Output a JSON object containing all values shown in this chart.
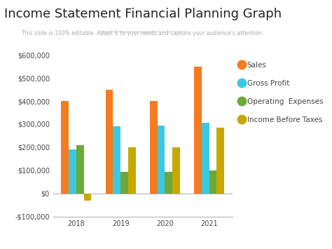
{
  "title": "Income Statement Financial Planning Graph",
  "subtitle": "This slide is 100% editable. Adapt it to your needs and capture your audience’s attention.",
  "years": [
    2018,
    2019,
    2020,
    2021
  ],
  "sales": [
    400000,
    450000,
    400000,
    550000
  ],
  "gross_profit": [
    190000,
    290000,
    295000,
    305000
  ],
  "operating_expenses": [
    210000,
    95000,
    95000,
    100000
  ],
  "income_before_taxes": [
    -30000,
    200000,
    200000,
    285000
  ],
  "colors": {
    "sales": "#F47B20",
    "gross_profit": "#3DC8E0",
    "operating_expenses": "#6BA83A",
    "income_before_taxes": "#C8A800"
  },
  "ylim": [
    -100000,
    600000
  ],
  "yticks": [
    -100000,
    0,
    100000,
    200000,
    300000,
    400000,
    500000,
    600000
  ],
  "background_color": "#ffffff",
  "title_fontsize": 13,
  "subtitle_fontsize": 5.5,
  "legend_fontsize": 7.5,
  "tick_fontsize": 7
}
